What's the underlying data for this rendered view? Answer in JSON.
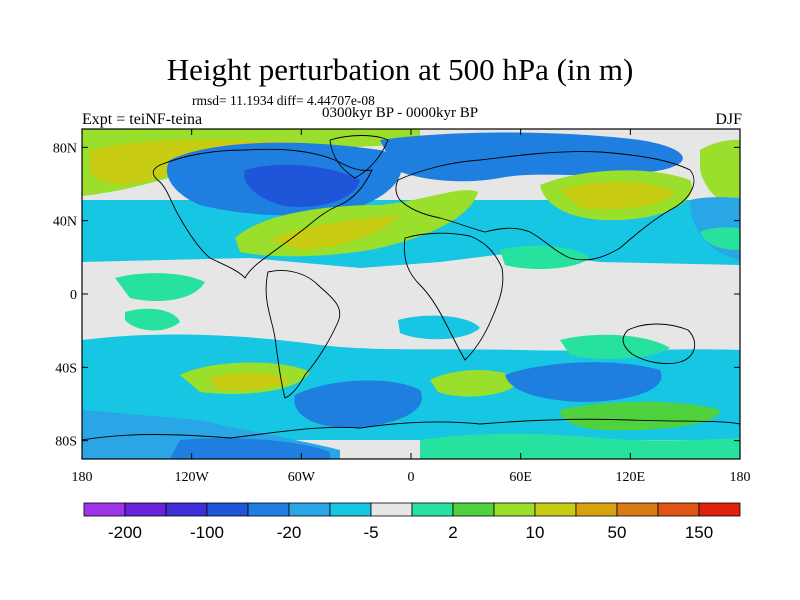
{
  "title": "Height perturbation at 500 hPa (in m)",
  "stats": "rmsd= 11.1934 diff= 4.44707e-08",
  "expt": "Expt = teiNF-teina",
  "period": "0300kyr BP - 0000kyr BP",
  "season": "DJF",
  "map": {
    "lat_ticks": [
      {
        "lat": 80,
        "label": "80N"
      },
      {
        "lat": 40,
        "label": "40N"
      },
      {
        "lat": 0,
        "label": "0"
      },
      {
        "lat": -40,
        "label": "40S"
      },
      {
        "lat": -80,
        "label": "80S"
      }
    ],
    "lon_ticks": [
      {
        "lon": -180,
        "label": "180"
      },
      {
        "lon": -120,
        "label": "120W"
      },
      {
        "lon": -60,
        "label": "60W"
      },
      {
        "lon": 0,
        "label": "0"
      },
      {
        "lon": 60,
        "label": "60E"
      },
      {
        "lon": 120,
        "label": "120E"
      },
      {
        "lon": 180,
        "label": "180"
      }
    ]
  },
  "colorbar": {
    "colors": [
      "#9e34e8",
      "#6a23dc",
      "#3d2ed8",
      "#1f55d8",
      "#1f7fe0",
      "#2aa6e6",
      "#16c6e2",
      "#e6e6e6",
      "#27e19f",
      "#4fd23e",
      "#99df2c",
      "#c8cd14",
      "#d8a20f",
      "#d97a12",
      "#e05513",
      "#e0210f"
    ],
    "labels": [
      {
        "after": 1,
        "text": "-200"
      },
      {
        "after": 3,
        "text": "-100"
      },
      {
        "after": 5,
        "text": "-20"
      },
      {
        "after": 7,
        "text": "-5"
      },
      {
        "after": 9,
        "text": "2"
      },
      {
        "after": 11,
        "text": "10"
      },
      {
        "after": 13,
        "text": "50"
      },
      {
        "after": 15,
        "text": "150"
      }
    ]
  },
  "legend": {
    "neg_strong": "#1f55d8",
    "neg_mid": "#1f7fe0",
    "neg_light": "#2aa6e6",
    "neg_faint": "#16c6e2",
    "neutral": "#e6e6e6",
    "pos_faint": "#27e19f",
    "pos_light": "#4fd23e",
    "pos_mid": "#99df2c",
    "pos_strong": "#c8cd14"
  }
}
